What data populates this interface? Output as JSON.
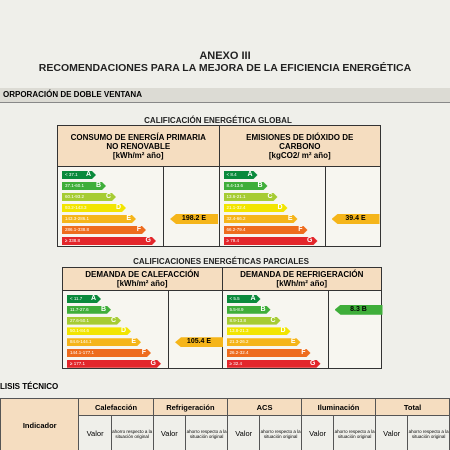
{
  "header": {
    "title": "ANEXO III",
    "subtitle": "RECOMENDACIONES PARA LA MEJORA DE LA EFICIENCIA ENERGÉTICA"
  },
  "section": "ORPORACIÓN DE DOBLE VENTANA",
  "scale_colors": {
    "A": "#0a8a3c",
    "B": "#3fae3a",
    "C": "#a6cc33",
    "D": "#f2e500",
    "E": "#f5b51a",
    "F": "#ee6c1e",
    "G": "#e3262b"
  },
  "global": {
    "title": "CALIFICACIÓN ENERGÉTICA GLOBAL",
    "panels": [
      {
        "title": "CONSUMO DE ENERGÍA PRIMARIA NO RENOVABLE",
        "unit": "[kWh/m² año]",
        "rating": "198.2 E",
        "scale": [
          {
            "range": "< 37.1",
            "class": "A"
          },
          {
            "range": "37.1-60.1",
            "class": "B"
          },
          {
            "range": "60.1-93.2",
            "class": "C"
          },
          {
            "range": "93.2-143.3",
            "class": "D"
          },
          {
            "range": "143.3-286.1",
            "class": "E"
          },
          {
            "range": "286.1-338.8",
            "class": "F"
          },
          {
            "range": "≥ 338.8",
            "class": "G"
          }
        ]
      },
      {
        "title": "EMISIONES DE DIÓXIDO DE CARBONO",
        "unit": "[kgCO2/ m² año]",
        "rating": "39.4 E",
        "scale": [
          {
            "range": "< 8.4",
            "class": "A"
          },
          {
            "range": "8.4-13.6",
            "class": "B"
          },
          {
            "range": "13.6-21.1",
            "class": "C"
          },
          {
            "range": "21.1-32.4",
            "class": "D"
          },
          {
            "range": "32.4-66.2",
            "class": "E"
          },
          {
            "range": "66.2-79.4",
            "class": "F"
          },
          {
            "range": "≥ 79.4",
            "class": "G"
          }
        ]
      }
    ]
  },
  "partial": {
    "title": "CALIFICACIONES ENERGÉTICAS PARCIALES",
    "panels": [
      {
        "title": "DEMANDA DE CALEFACCIÓN",
        "unit": "[kWh/m² año]",
        "rating": "105.4 E",
        "scale": [
          {
            "range": "< 11.7",
            "class": "A"
          },
          {
            "range": "11.7-27.6",
            "class": "B"
          },
          {
            "range": "27.6-50.1",
            "class": "C"
          },
          {
            "range": "50.1-84.6",
            "class": "D"
          },
          {
            "range": "84.6-144.1",
            "class": "E"
          },
          {
            "range": "144.1-177.1",
            "class": "F"
          },
          {
            "range": "≥ 177.1",
            "class": "G"
          }
        ]
      },
      {
        "title": "DEMANDA DE REFRIGERACIÓN",
        "unit": "[kWh/m² año]",
        "rating": "8.3 B",
        "scale": [
          {
            "range": "< 5.5",
            "class": "A"
          },
          {
            "range": "5.5-8.9",
            "class": "B"
          },
          {
            "range": "8.9-13.8",
            "class": "C"
          },
          {
            "range": "13.8-21.3",
            "class": "D"
          },
          {
            "range": "21.3-26.2",
            "class": "E"
          },
          {
            "range": "26.2-32.4",
            "class": "F"
          },
          {
            "range": "≥ 32.4",
            "class": "G"
          }
        ]
      }
    ]
  },
  "analysis": {
    "title": "LISIS TÉCNICO",
    "table": {
      "indicator": "Indicador",
      "groups": [
        "Calefacción",
        "Refrigeración",
        "ACS",
        "Iluminación",
        "Total"
      ],
      "value": "Valor",
      "saving": "ahorro respecto a la situación original"
    }
  }
}
